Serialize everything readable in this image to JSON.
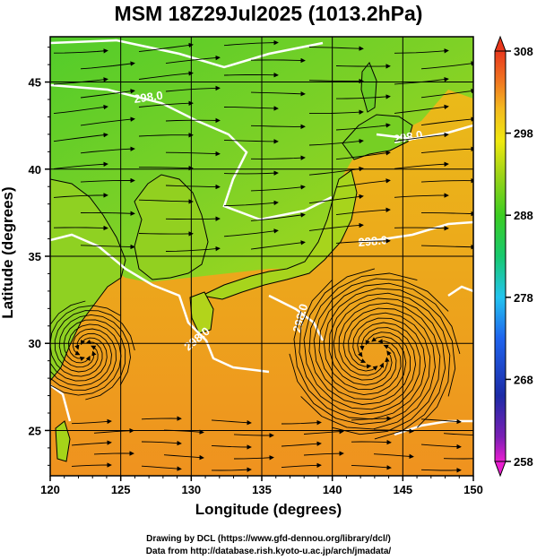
{
  "title": "MSM 18Z29Jul2025 (1013.2hPa)",
  "xlabel": "Longitude (degrees)",
  "ylabel": "Latitude  (degrees)",
  "credits": [
    "Drawing by DCL (https://www.gfd-dennou.org/library/dcl/)",
    "Data from http://database.rish.kyoto-u.ac.jp/arch/jmadata/"
  ],
  "map": {
    "lon_range": [
      120,
      150
    ],
    "lat_range": [
      22.4,
      47.6
    ],
    "lon_ticks": [
      "120",
      "125",
      "130",
      "135",
      "140",
      "145",
      "150"
    ],
    "lat_ticks": [
      "25",
      "30",
      "35",
      "40",
      "45"
    ],
    "contour_labels": [
      "298.0",
      "298.0",
      "298.0",
      "298.0",
      "298.0"
    ],
    "colors": {
      "land_cool": "#7fd126",
      "land_warm": "#a6d41a",
      "sea_warm": "#ef9a1e",
      "sea_mid": "#e4b218",
      "contour": "#ffffff",
      "frame": "#000000"
    }
  },
  "colorbar": {
    "ticks": [
      "308",
      "298",
      "288",
      "278",
      "268",
      "258"
    ],
    "range": [
      258,
      308
    ],
    "palette": [
      "#e91ed0",
      "#7a1fb4",
      "#1c2ba6",
      "#1f64ee",
      "#23c4ef",
      "#17c96e",
      "#3ccd22",
      "#9fd417",
      "#efe910",
      "#f3b91f",
      "#f07321",
      "#e8381d"
    ]
  }
}
